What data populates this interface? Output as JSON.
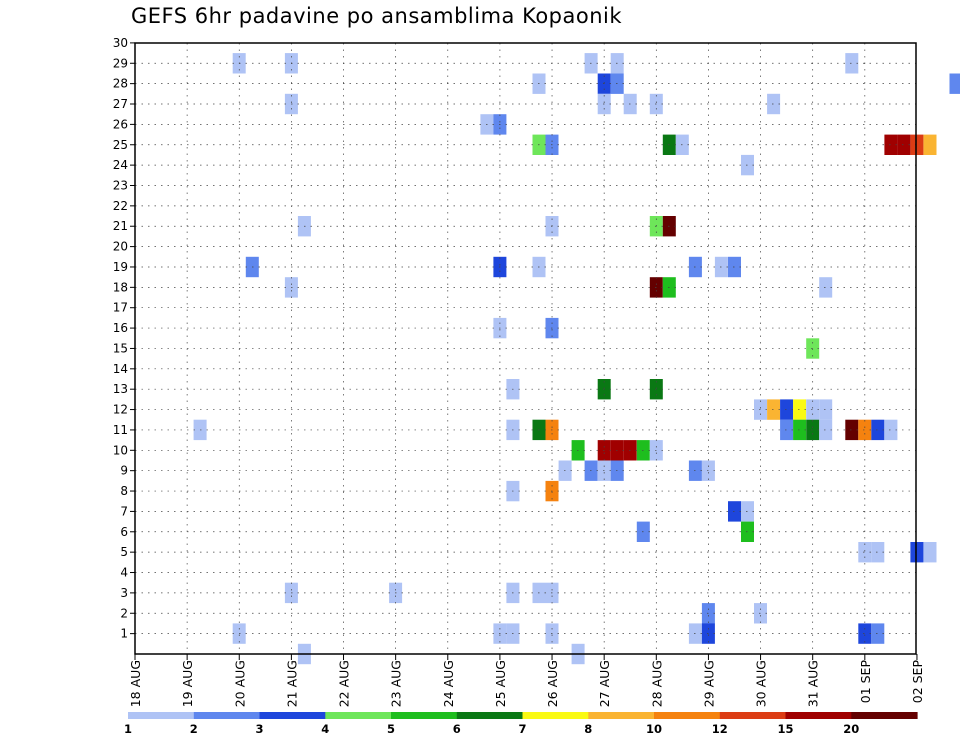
{
  "chart_data": {
    "type": "heatmap",
    "title": "GEFS 6hr padavine po ansamblima Kopaonik",
    "xlabel": "",
    "ylabel": "",
    "x_tick_labels": [
      "18 AUG",
      "19 AUG",
      "20 AUG",
      "21 AUG",
      "22 AUG",
      "23 AUG",
      "24 AUG",
      "25 AUG",
      "26 AUG",
      "27 AUG",
      "28 AUG",
      "29 AUG",
      "30 AUG",
      "31 AUG",
      "01 SEP",
      "02 SEP"
    ],
    "y_range": [
      0,
      30
    ],
    "y_ticks": [
      1,
      2,
      3,
      4,
      5,
      6,
      7,
      8,
      9,
      10,
      11,
      12,
      13,
      14,
      15,
      16,
      17,
      18,
      19,
      20,
      21,
      22,
      23,
      24,
      25,
      26,
      27,
      28,
      29,
      30
    ],
    "grid": true,
    "levels": [
      1,
      2,
      3,
      4,
      5,
      6,
      7,
      8,
      10,
      12,
      15,
      20
    ],
    "level_labels": [
      "1",
      "2",
      "3",
      "4",
      "5",
      "6",
      "7",
      "8",
      "10",
      "12",
      "15",
      "20"
    ],
    "colors": [
      "#afc3f5",
      "#5f87ee",
      "#1e46dc",
      "#6ee65a",
      "#1ebe1e",
      "#0a7814",
      "#fafa14",
      "#fab432",
      "#f5820f",
      "#dc3c14",
      "#a00000",
      "#640000"
    ],
    "cells": [
      {
        "x": "20 AUG 00",
        "member": 29,
        "bin": 1
      },
      {
        "x": "21 AUG 00",
        "member": 29,
        "bin": 1
      },
      {
        "x": "26 AUG 18",
        "member": 29,
        "bin": 1
      },
      {
        "x": "27 AUG 06",
        "member": 29,
        "bin": 1
      },
      {
        "x": "31 AUG 18",
        "member": 29,
        "bin": 1
      },
      {
        "x": "25 AUG 18",
        "member": 28,
        "bin": 1
      },
      {
        "x": "27 AUG 00",
        "member": 28,
        "bin": 3
      },
      {
        "x": "27 AUG 06",
        "member": 28,
        "bin": 2
      },
      {
        "x": "02 SEP 18",
        "member": 28,
        "bin": 2
      },
      {
        "x": "21 AUG 00",
        "member": 27,
        "bin": 1
      },
      {
        "x": "27 AUG 00",
        "member": 27,
        "bin": 1
      },
      {
        "x": "27 AUG 12",
        "member": 27,
        "bin": 1
      },
      {
        "x": "28 AUG 00",
        "member": 27,
        "bin": 1
      },
      {
        "x": "30 AUG 06",
        "member": 27,
        "bin": 1
      },
      {
        "x": "24 AUG 18",
        "member": 26,
        "bin": 1
      },
      {
        "x": "25 AUG 00",
        "member": 26,
        "bin": 2
      },
      {
        "x": "25 AUG 18",
        "member": 25,
        "bin": 4
      },
      {
        "x": "26 AUG 00",
        "member": 25,
        "bin": 2
      },
      {
        "x": "28 AUG 06",
        "member": 25,
        "bin": 6
      },
      {
        "x": "28 AUG 12",
        "member": 25,
        "bin": 1
      },
      {
        "x": "01 SEP 12",
        "member": 25,
        "bin": 11
      },
      {
        "x": "01 SEP 18",
        "member": 25,
        "bin": 11
      },
      {
        "x": "02 SEP 00",
        "member": 25,
        "bin": 10
      },
      {
        "x": "02 SEP 06",
        "member": 25,
        "bin": 8
      },
      {
        "x": "29 AUG 18",
        "member": 24,
        "bin": 1
      },
      {
        "x": "21 AUG 06",
        "member": 21,
        "bin": 1
      },
      {
        "x": "26 AUG 00",
        "member": 21,
        "bin": 1
      },
      {
        "x": "28 AUG 00",
        "member": 21,
        "bin": 4
      },
      {
        "x": "28 AUG 06",
        "member": 21,
        "bin": 12
      },
      {
        "x": "20 AUG 06",
        "member": 19,
        "bin": 2
      },
      {
        "x": "25 AUG 00",
        "member": 19,
        "bin": 3
      },
      {
        "x": "25 AUG 18",
        "member": 19,
        "bin": 1
      },
      {
        "x": "28 AUG 18",
        "member": 19,
        "bin": 2
      },
      {
        "x": "29 AUG 06",
        "member": 19,
        "bin": 1
      },
      {
        "x": "29 AUG 12",
        "member": 19,
        "bin": 2
      },
      {
        "x": "21 AUG 00",
        "member": 18,
        "bin": 1
      },
      {
        "x": "28 AUG 00",
        "member": 18,
        "bin": 12
      },
      {
        "x": "28 AUG 06",
        "member": 18,
        "bin": 5
      },
      {
        "x": "31 AUG 06",
        "member": 18,
        "bin": 1
      },
      {
        "x": "26 AUG 00",
        "member": 16,
        "bin": 2
      },
      {
        "x": "25 AUG 00",
        "member": 16,
        "bin": 1
      },
      {
        "x": "31 AUG 00",
        "member": 15,
        "bin": 4
      },
      {
        "x": "25 AUG 06",
        "member": 13,
        "bin": 1
      },
      {
        "x": "27 AUG 00",
        "member": 13,
        "bin": 6
      },
      {
        "x": "28 AUG 00",
        "member": 13,
        "bin": 6
      },
      {
        "x": "30 AUG 00",
        "member": 12,
        "bin": 1
      },
      {
        "x": "30 AUG 06",
        "member": 12,
        "bin": 8
      },
      {
        "x": "30 AUG 12",
        "member": 12,
        "bin": 3
      },
      {
        "x": "30 AUG 18",
        "member": 12,
        "bin": 7
      },
      {
        "x": "31 AUG 00",
        "member": 12,
        "bin": 1
      },
      {
        "x": "31 AUG 06",
        "member": 12,
        "bin": 1
      },
      {
        "x": "19 AUG 06",
        "member": 11,
        "bin": 1
      },
      {
        "x": "25 AUG 06",
        "member": 11,
        "bin": 1
      },
      {
        "x": "25 AUG 18",
        "member": 11,
        "bin": 6
      },
      {
        "x": "26 AUG 00",
        "member": 11,
        "bin": 9
      },
      {
        "x": "30 AUG 12",
        "member": 11,
        "bin": 2
      },
      {
        "x": "30 AUG 18",
        "member": 11,
        "bin": 5
      },
      {
        "x": "31 AUG 00",
        "member": 11,
        "bin": 6
      },
      {
        "x": "31 AUG 06",
        "member": 11,
        "bin": 1
      },
      {
        "x": "31 AUG 18",
        "member": 11,
        "bin": 12
      },
      {
        "x": "01 SEP 00",
        "member": 11,
        "bin": 9
      },
      {
        "x": "01 SEP 06",
        "member": 11,
        "bin": 3
      },
      {
        "x": "01 SEP 12",
        "member": 11,
        "bin": 1
      },
      {
        "x": "26 AUG 12",
        "member": 10,
        "bin": 5
      },
      {
        "x": "27 AUG 00",
        "member": 10,
        "bin": 11
      },
      {
        "x": "27 AUG 06",
        "member": 10,
        "bin": 11
      },
      {
        "x": "27 AUG 12",
        "member": 10,
        "bin": 11
      },
      {
        "x": "27 AUG 18",
        "member": 10,
        "bin": 5
      },
      {
        "x": "28 AUG 00",
        "member": 10,
        "bin": 1
      },
      {
        "x": "26 AUG 06",
        "member": 9,
        "bin": 1
      },
      {
        "x": "26 AUG 18",
        "member": 9,
        "bin": 2
      },
      {
        "x": "27 AUG 00",
        "member": 9,
        "bin": 1
      },
      {
        "x": "27 AUG 06",
        "member": 9,
        "bin": 2
      },
      {
        "x": "28 AUG 18",
        "member": 9,
        "bin": 2
      },
      {
        "x": "29 AUG 00",
        "member": 9,
        "bin": 1
      },
      {
        "x": "25 AUG 06",
        "member": 8,
        "bin": 1
      },
      {
        "x": "26 AUG 00",
        "member": 8,
        "bin": 9
      },
      {
        "x": "29 AUG 12",
        "member": 7,
        "bin": 3
      },
      {
        "x": "29 AUG 18",
        "member": 7,
        "bin": 1
      },
      {
        "x": "27 AUG 18",
        "member": 6,
        "bin": 2
      },
      {
        "x": "29 AUG 18",
        "member": 6,
        "bin": 5
      },
      {
        "x": "01 SEP 00",
        "member": 5,
        "bin": 1
      },
      {
        "x": "01 SEP 06",
        "member": 5,
        "bin": 1
      },
      {
        "x": "02 SEP 00",
        "member": 5,
        "bin": 3
      },
      {
        "x": "02 SEP 06",
        "member": 5,
        "bin": 1
      },
      {
        "x": "21 AUG 00",
        "member": 3,
        "bin": 1
      },
      {
        "x": "23 AUG 00",
        "member": 3,
        "bin": 1
      },
      {
        "x": "25 AUG 06",
        "member": 3,
        "bin": 1
      },
      {
        "x": "25 AUG 18",
        "member": 3,
        "bin": 1
      },
      {
        "x": "26 AUG 00",
        "member": 3,
        "bin": 1
      },
      {
        "x": "29 AUG 00",
        "member": 2,
        "bin": 2
      },
      {
        "x": "30 AUG 00",
        "member": 2,
        "bin": 1
      },
      {
        "x": "20 AUG 00",
        "member": 1,
        "bin": 1
      },
      {
        "x": "25 AUG 00",
        "member": 1,
        "bin": 1
      },
      {
        "x": "25 AUG 06",
        "member": 1,
        "bin": 1
      },
      {
        "x": "26 AUG 00",
        "member": 1,
        "bin": 1
      },
      {
        "x": "28 AUG 18",
        "member": 1,
        "bin": 1
      },
      {
        "x": "29 AUG 00",
        "member": 1,
        "bin": 3
      },
      {
        "x": "01 SEP 00",
        "member": 1,
        "bin": 3
      },
      {
        "x": "01 SEP 06",
        "member": 1,
        "bin": 2
      },
      {
        "x": "21 AUG 06",
        "member": 0,
        "bin": 1
      },
      {
        "x": "26 AUG 12",
        "member": 0,
        "bin": 1
      }
    ]
  }
}
